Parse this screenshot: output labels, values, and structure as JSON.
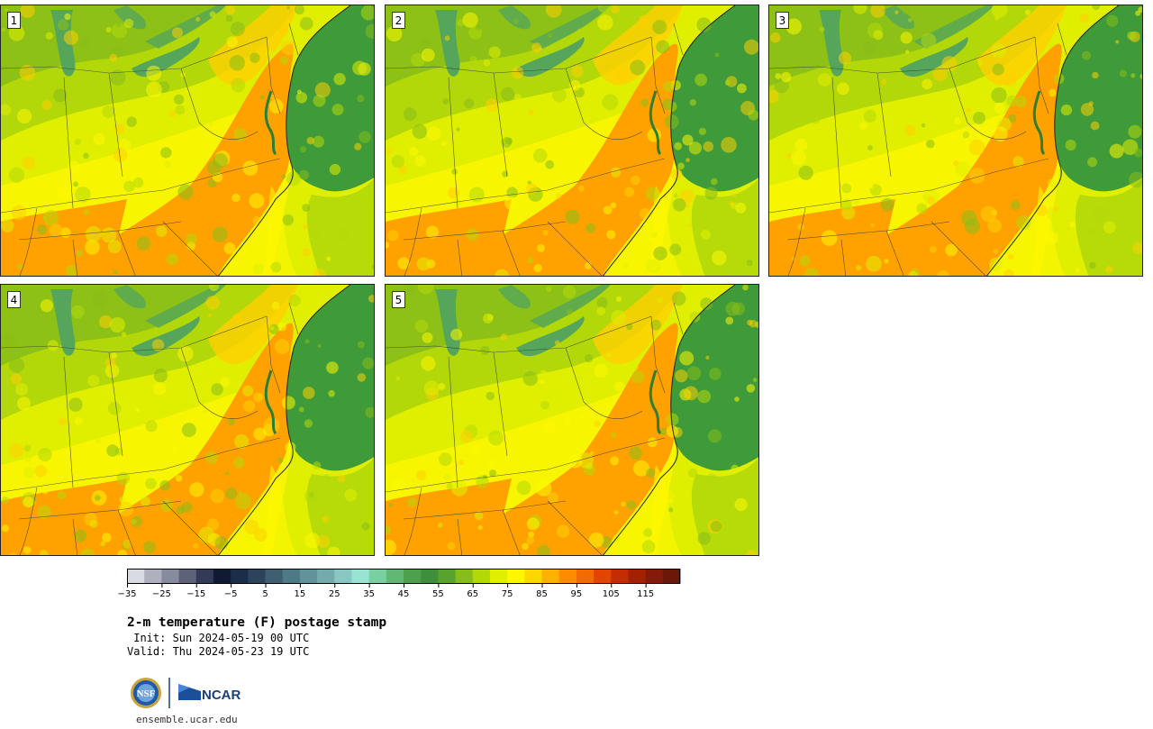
{
  "panels": [
    {
      "label": "1"
    },
    {
      "label": "2"
    },
    {
      "label": "3"
    },
    {
      "label": "4"
    },
    {
      "label": "5"
    }
  ],
  "colorbar": {
    "colors": [
      "#d9dbe2",
      "#aeb1bd",
      "#878b9e",
      "#5d6279",
      "#323a55",
      "#101a33",
      "#1b2d48",
      "#2b445c",
      "#3f5e70",
      "#4e7a86",
      "#60939a",
      "#73aaac",
      "#88c7c2",
      "#98e3d4",
      "#7acfa0",
      "#62b774",
      "#4ea04d",
      "#3f8f3a",
      "#58a32a",
      "#86bd18",
      "#b3d80a",
      "#e0ef00",
      "#fff700",
      "#ffd700",
      "#ffb000",
      "#ff8c00",
      "#f36b00",
      "#e44400",
      "#c72c00",
      "#a42000",
      "#861a08",
      "#6b1808"
    ],
    "tick_labels": [
      "−35",
      "−25",
      "−15",
      "−5",
      "5",
      "15",
      "25",
      "35",
      "45",
      "55",
      "65",
      "75",
      "85",
      "95",
      "105",
      "115"
    ]
  },
  "title": "2-m temperature (F) postage stamp",
  "init_line": " Init: Sun 2024-05-19 00 UTC",
  "valid_line": "Valid: Thu 2024-05-23 19 UTC",
  "logos": {
    "nsf": "NSF",
    "ncar": "NCAR"
  },
  "url": "ensemble.ucar.edu"
}
